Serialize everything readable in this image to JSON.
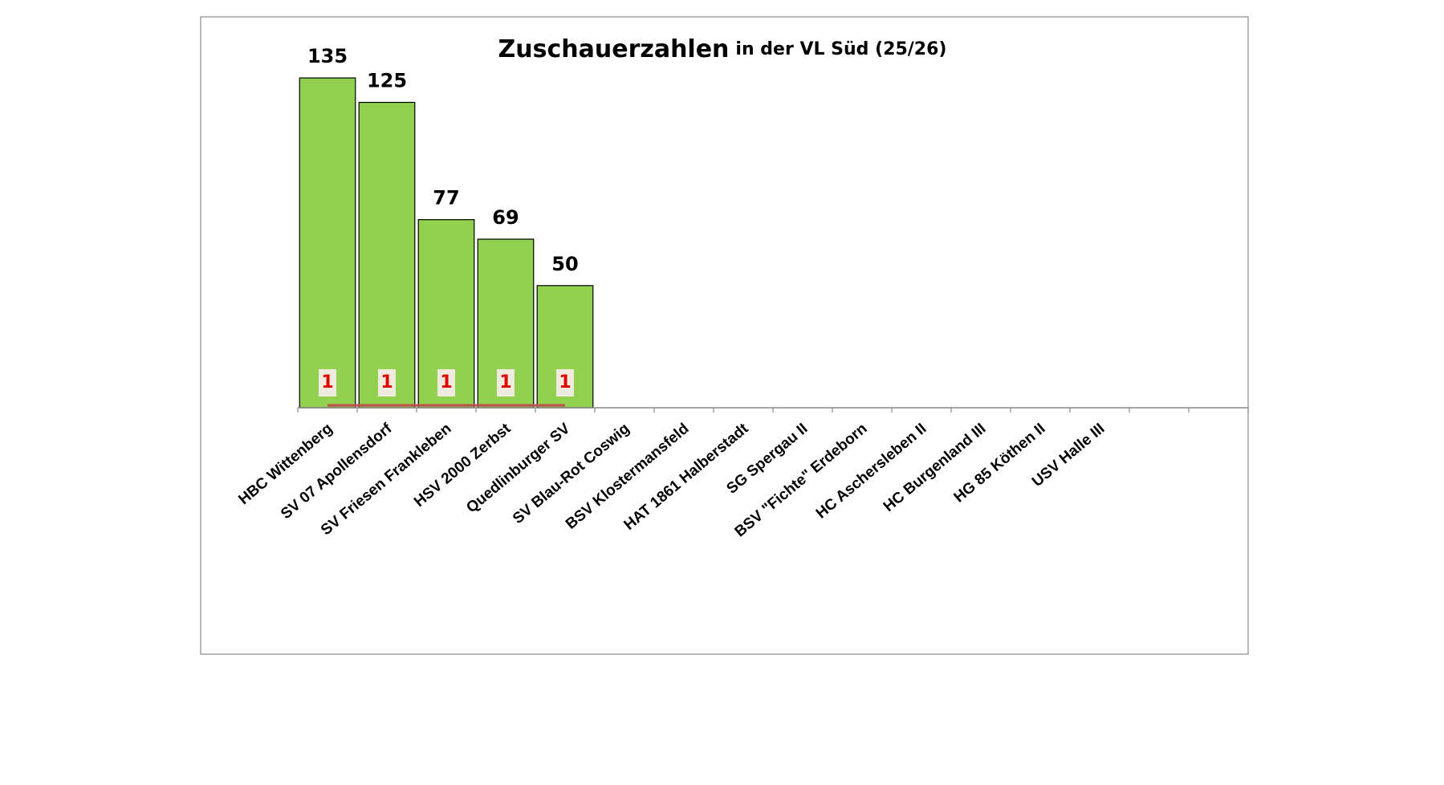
{
  "chart_data": {
    "type": "bar",
    "title": "Zuschauerzahlen",
    "subtitle": "in der VL Süd (25/26)",
    "categories": [
      "HBC Wittenberg",
      "SV 07 Apollensdorf",
      "SV Friesen Frankleben",
      "HSV 2000 Zerbst",
      "Quedlinburger SV",
      "SV Blau-Rot Coswig",
      "BSV Klostermansfeld",
      "HAT 1861 Halberstadt",
      "SG Spergau II",
      "BSV \"Fichte\" Erdeborn",
      "HC Aschersleben II",
      "HC Burgenland III",
      "HG 85 Köthen II",
      "USV Halle III",
      null,
      null
    ],
    "series": [
      {
        "type": "bar",
        "color": "#92d050",
        "values": [
          135,
          125,
          77,
          69,
          50,
          null,
          null,
          null,
          null,
          null,
          null,
          null,
          null,
          null,
          null,
          null
        ]
      },
      {
        "type": "line",
        "color": "#c0504d",
        "values": [
          1,
          1,
          1,
          1,
          1,
          null,
          null,
          null,
          null,
          null,
          null,
          null,
          null,
          null,
          null,
          null
        ]
      }
    ],
    "ylim": [
      0,
      160
    ]
  }
}
